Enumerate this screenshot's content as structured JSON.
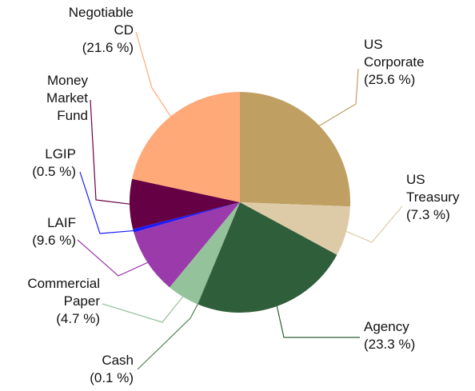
{
  "chart_data": {
    "type": "pie",
    "categories": [
      "US Corporate",
      "US Treasury",
      "Agency",
      "Cash",
      "Commercial Paper",
      "LAIF",
      "LGIP",
      "Money Market Fund",
      "Negotiable CD"
    ],
    "values": [
      25.6,
      7.3,
      23.3,
      0.1,
      4.7,
      9.6,
      0.5,
      7.3,
      21.6
    ],
    "value_labels": [
      "(25.6 %)",
      "(7.3 %)",
      "(23.3 %)",
      "(0.1 %)",
      "(4.7 %)",
      "(9.6 %)",
      "(0.5 %)",
      null,
      "(21.6 %)"
    ],
    "colors": [
      "#bfa062",
      "#ddcba8",
      "#2f5e3b",
      "#4f7f52",
      "#93c29b",
      "#9b3bab",
      "#1a1aff",
      "#660044",
      "#ffa878"
    ]
  }
}
